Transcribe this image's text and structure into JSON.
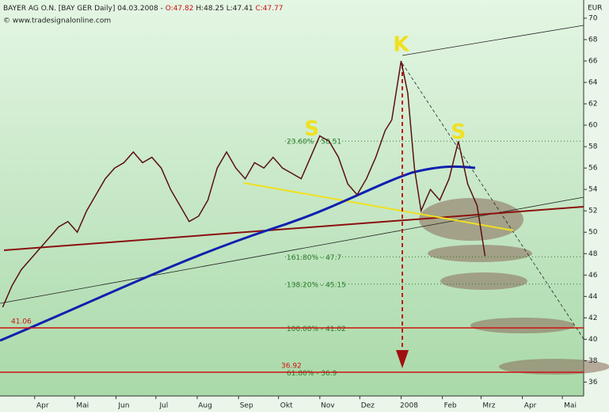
{
  "chart_data": {
    "type": "line",
    "header": [
      "BAYER AG O.N. [BAY GER  Daily] 04.03.2008 - ",
      "O:47.82",
      " H:48.25 L:47.41 ",
      "C:47.77"
    ],
    "source": "© www.tradesignalonline.com",
    "y_unit": "EUR",
    "x": [
      -24,
      -17,
      -10,
      -3,
      4,
      11,
      18,
      25,
      32,
      39,
      46,
      53,
      60,
      67,
      74,
      81,
      88,
      95,
      102,
      109,
      116,
      123,
      130,
      137,
      144,
      151,
      158,
      165,
      172,
      179,
      186,
      193,
      200,
      207,
      214,
      221,
      228,
      235,
      242,
      249,
      256,
      263,
      268,
      275,
      280,
      285,
      290,
      297,
      304,
      311,
      318,
      325,
      332,
      338
    ],
    "series": [
      {
        "name": "BAYER AG O.N.",
        "color": "#5a1010",
        "values": [
          43,
          45,
          46.5,
          47.5,
          48.5,
          49.5,
          50.5,
          51,
          50,
          52,
          53.5,
          55,
          56,
          56.5,
          57.5,
          56.5,
          57,
          56,
          54,
          52.5,
          51,
          51.5,
          53,
          56,
          57.5,
          56,
          55,
          56.5,
          56,
          57,
          56,
          55.5,
          55,
          57,
          59,
          58.5,
          57,
          54.5,
          53.5,
          55,
          57,
          59.5,
          60.5,
          66,
          63,
          56,
          52,
          54,
          53,
          55,
          58.5,
          54.5,
          52.5,
          47.77
        ]
      }
    ],
    "xlim": [
      -26,
      412
    ],
    "xticks": [
      {
        "value": 0,
        "label": "Apr"
      },
      {
        "value": 30,
        "label": "Mai"
      },
      {
        "value": 61,
        "label": "Jun"
      },
      {
        "value": 91,
        "label": "Jul"
      },
      {
        "value": 122,
        "label": "Aug"
      },
      {
        "value": 153,
        "label": "Sep"
      },
      {
        "value": 183,
        "label": "Okt"
      },
      {
        "value": 214,
        "label": "Nov"
      },
      {
        "value": 244,
        "label": "Dez"
      },
      {
        "value": 275,
        "label": "2008"
      },
      {
        "value": 306,
        "label": "Feb"
      },
      {
        "value": 335,
        "label": "Mrz"
      },
      {
        "value": 366,
        "label": "Apr"
      },
      {
        "value": 396,
        "label": "Mai"
      }
    ],
    "ylim": [
      34.7,
      71.7
    ],
    "yticks": [
      36,
      38,
      40,
      42,
      44,
      46,
      48,
      50,
      52,
      54,
      56,
      58,
      60,
      62,
      64,
      66,
      68,
      70
    ],
    "annotations": [
      {
        "text": "K",
        "x": 275,
        "y": 67.5
      },
      {
        "text": "S",
        "x": 208,
        "y": 59.6
      },
      {
        "text": "S",
        "x": 318,
        "y": 59.3
      }
    ],
    "levels": [
      {
        "label": "23.60% - 58.51",
        "value": 58.51,
        "color": "#2a7a2a",
        "style": "dotted"
      },
      {
        "label": "161.80% - 47.7",
        "value": 47.7,
        "color": "#2a7a2a",
        "style": "dotted"
      },
      {
        "label": "138.20% - 45.15",
        "value": 45.15,
        "color": "#2a7a2a",
        "style": "dotted"
      },
      {
        "label": "100.00% - 41.02",
        "value": 41.02,
        "color": "#2a7a2a",
        "style": "none"
      },
      {
        "label": "61.80% - 36.9",
        "value": 36.9,
        "color": "#2a7a2a",
        "style": "none"
      }
    ],
    "hlines": [
      {
        "label": "41.06",
        "value": 41.06,
        "color": "#d01010"
      },
      {
        "label": "36.92",
        "value": 36.92,
        "color": "#d01010"
      }
    ]
  }
}
